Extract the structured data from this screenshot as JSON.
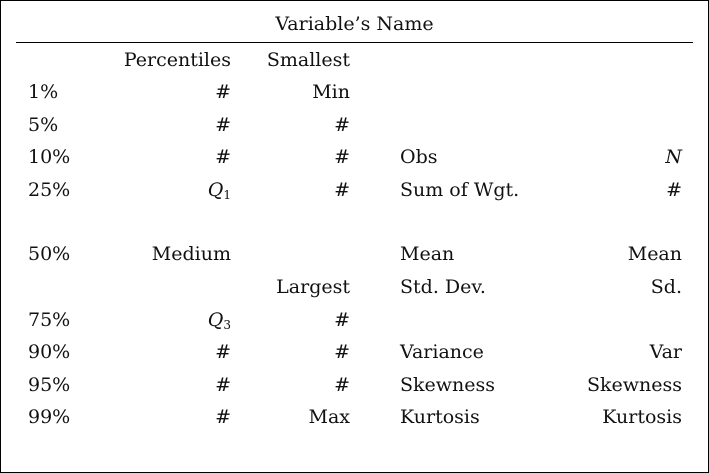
{
  "title": "Variable’s Name",
  "headers": {
    "percentiles": "Percentiles",
    "smallest": "Smallest",
    "largest": "Largest"
  },
  "rows": [
    {
      "label": "1%",
      "pct": "#",
      "small": "Min",
      "stat": "",
      "val": ""
    },
    {
      "label": "5%",
      "pct": "#",
      "small": "#",
      "stat": "",
      "val": ""
    },
    {
      "label": "10%",
      "pct": "#",
      "small": "#",
      "stat": "Obs",
      "val": "N"
    },
    {
      "label": "25%",
      "pct": "Q",
      "pct_sub": "1",
      "small": "#",
      "stat": "Sum of Wgt.",
      "val": "#"
    },
    {
      "label": "50%",
      "pct": "Medium",
      "small": "",
      "stat": "Mean",
      "val": "Mean"
    },
    {
      "label": "",
      "pct": "",
      "small": "",
      "stat": "Std. Dev.",
      "val": "Sd."
    },
    {
      "label": "75%",
      "pct": "Q",
      "pct_sub": "3",
      "small": "#",
      "stat": "",
      "val": ""
    },
    {
      "label": "90%",
      "pct": "#",
      "small": "#",
      "stat": "Variance",
      "val": "Var"
    },
    {
      "label": "95%",
      "pct": "#",
      "small": "#",
      "stat": "Skewness",
      "val": "Skewness"
    },
    {
      "label": "99%",
      "pct": "#",
      "small": "Max",
      "stat": "Kurtosis",
      "val": "Kurtosis"
    }
  ]
}
